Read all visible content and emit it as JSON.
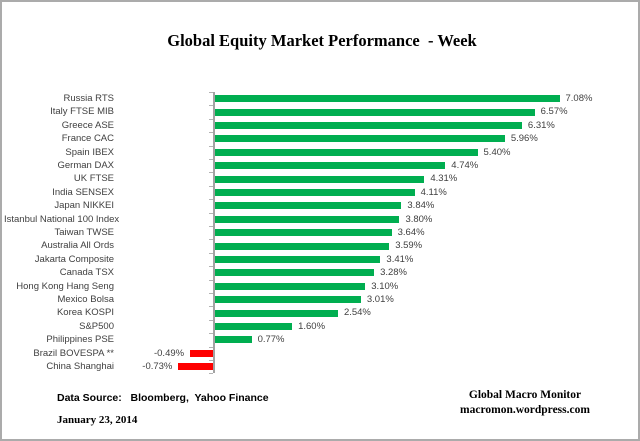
{
  "title": "Global Equity Market Performance  - Week",
  "footer": {
    "data_source": "Data Source:   Bloomberg,  Yahoo Finance",
    "date": "January 23, 2014",
    "brand_line1": "Global Macro Monitor",
    "brand_line2": "macromon.wordpress.com"
  },
  "colors": {
    "positive_bar": "#00AE50",
    "negative_bar": "#FE0000",
    "axis": "#A3A3A3",
    "tick": "#B3B3B3",
    "label_text": "#404040",
    "title_text": "#000000"
  },
  "chart_data": {
    "type": "bar",
    "orientation": "horizontal",
    "title": "Global Equity Market Performance  - Week",
    "xlabel": "",
    "ylabel": "",
    "xlim": [
      -2,
      8.7
    ],
    "grid": false,
    "legend": false,
    "value_suffix": "%",
    "categories": [
      "Russia RTS",
      "Italy FTSE MIB",
      "Greece ASE",
      "France CAC",
      "Spain IBEX",
      "German DAX",
      "UK FTSE",
      "India SENSEX",
      "Japan NIKKEI",
      "Istanbul National 100 Index",
      "Taiwan  TWSE",
      "Australia All Ords",
      "Jakarta Composite",
      "Canada TSX",
      "Hong Kong Hang Seng",
      "Mexico Bolsa",
      "Korea KOSPI",
      "S&P500",
      "Philippines PSE",
      "Brazil BOVESPA **",
      "China Shanghai"
    ],
    "values": [
      7.08,
      6.57,
      6.31,
      5.96,
      5.4,
      4.74,
      4.31,
      4.11,
      3.84,
      3.8,
      3.64,
      3.59,
      3.41,
      3.28,
      3.1,
      3.01,
      2.54,
      1.6,
      0.77,
      -0.49,
      -0.73
    ],
    "value_labels": [
      "7.08%",
      "6.57%",
      "6.31%",
      "5.96%",
      "5.40%",
      "4.74%",
      "4.31%",
      "4.11%",
      "3.84%",
      "3.80%",
      "3.64%",
      "3.59%",
      "3.41%",
      "3.28%",
      "3.10%",
      "3.01%",
      "2.54%",
      "1.60%",
      "0.77%",
      "-0.49%",
      "-0.73%"
    ]
  }
}
